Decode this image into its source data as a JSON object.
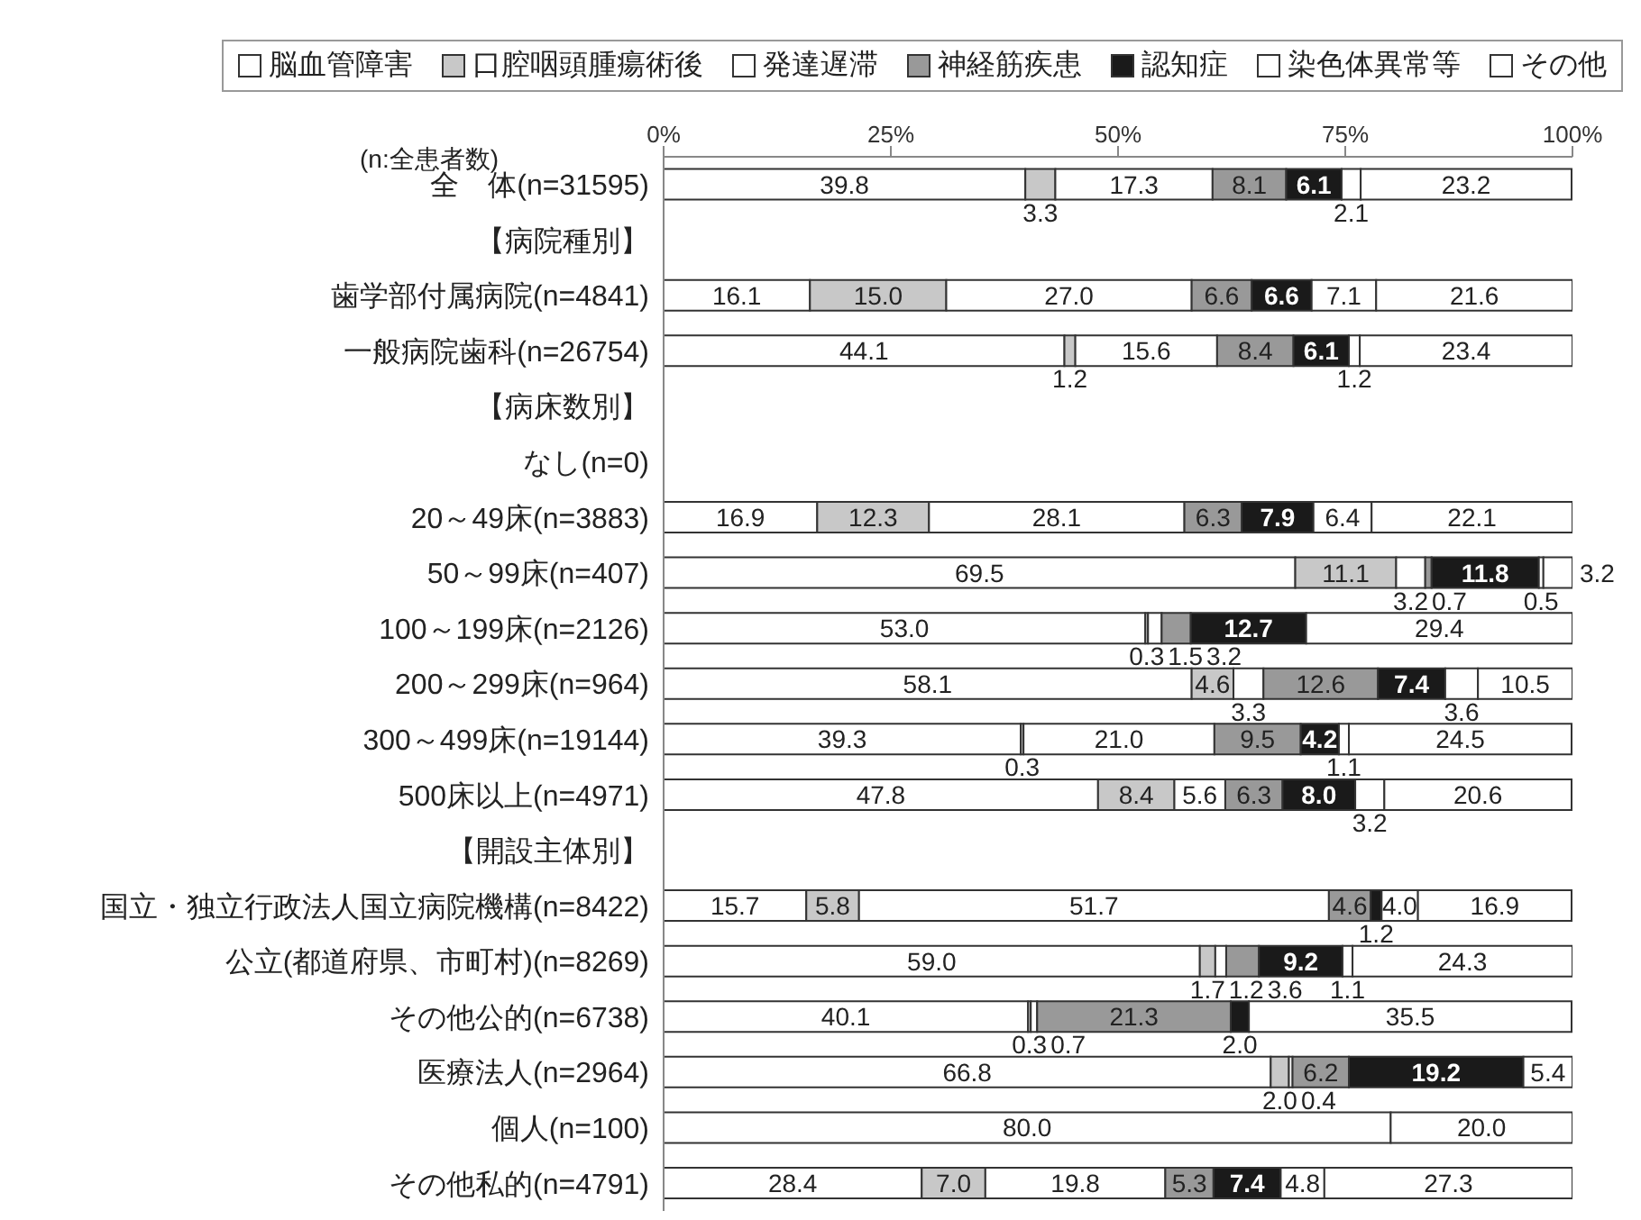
{
  "chart_data": {
    "type": "bar",
    "orientation": "horizontal",
    "stacked": true,
    "legend": "top",
    "annotations": [
      "(n:全患者数)"
    ],
    "categories": [
      "全　体(n=31595)",
      "【病院種別】",
      "歯学部付属病院(n=4841)",
      "一般病院歯科(n=26754)",
      "【病床数別】",
      "なし(n=0)",
      "20～49床(n=3883)",
      "50～99床(n=407)",
      "100～199床(n=2126)",
      "200～299床(n=964)",
      "300～499床(n=19144)",
      "500床以上(n=4971)",
      "【開設主体別】",
      "国立・独立行政法人国立病院機構(n=8422)",
      "公立(都道府県、市町村)(n=8269)",
      "その他公的(n=6738)",
      "医療法人(n=2964)",
      "個人(n=100)",
      "その他私的(n=4791)"
    ],
    "xlim": [
      0,
      100
    ],
    "xticks": [
      {
        "value": 0,
        "label": "0%"
      },
      {
        "value": 25,
        "label": "25%"
      },
      {
        "value": 50,
        "label": "50%"
      },
      {
        "value": 75,
        "label": "75%"
      },
      {
        "value": 100,
        "label": "100%"
      }
    ],
    "series": [
      {
        "name": "脳血管障害",
        "color": "#ffffff",
        "values": [
          39.8,
          null,
          16.1,
          44.1,
          null,
          null,
          16.9,
          69.5,
          53.0,
          58.1,
          39.3,
          47.8,
          null,
          15.7,
          59.0,
          40.1,
          66.8,
          80.0,
          28.4
        ],
        "value_labels": [
          "39.8",
          null,
          "16.1",
          "44.1",
          null,
          null,
          "16.9",
          "69.5",
          "53.0",
          "58.1",
          "39.3",
          "47.8",
          null,
          "15.7",
          "59.0",
          "40.1",
          "66.8",
          "80.0",
          "28.4"
        ]
      },
      {
        "name": "口腔咽頭腫瘍術後",
        "color": "#c8c8c8",
        "values": [
          3.3,
          null,
          15.0,
          1.2,
          null,
          null,
          12.3,
          11.1,
          0.3,
          4.6,
          0.3,
          8.4,
          null,
          5.8,
          1.7,
          0.3,
          2.0,
          null,
          7.0
        ],
        "value_labels": [
          "3.3",
          null,
          "15.0",
          "1.2",
          null,
          null,
          "12.3",
          "11.1",
          "0.3",
          "4.6",
          "0.3",
          "8.4",
          null,
          "5.8",
          "1.7",
          "0.3",
          "2.0",
          null,
          "7.0"
        ]
      },
      {
        "name": "発達遅滞",
        "color": "#ffffff",
        "values": [
          17.3,
          null,
          27.0,
          15.6,
          null,
          null,
          28.1,
          3.2,
          1.5,
          3.3,
          21.0,
          5.6,
          null,
          51.7,
          1.2,
          0.7,
          0.4,
          null,
          19.8
        ],
        "value_labels": [
          "17.3",
          null,
          "27.0",
          "15.6",
          null,
          null,
          "28.1",
          "3.2",
          "1.5",
          "3.3",
          "21.0",
          "5.6",
          null,
          "51.7",
          "1.2",
          "0.7",
          "0.4",
          null,
          "19.8"
        ]
      },
      {
        "name": "神経筋疾患",
        "color": "#999999",
        "values": [
          8.1,
          null,
          6.6,
          8.4,
          null,
          null,
          6.3,
          0.7,
          3.2,
          12.6,
          9.5,
          6.3,
          null,
          4.6,
          3.6,
          21.3,
          6.2,
          null,
          5.3
        ],
        "value_labels": [
          "8.1",
          null,
          "6.6",
          "8.4",
          null,
          null,
          "6.3",
          "0.7",
          "3.2",
          "12.6",
          "9.5",
          "6.3",
          null,
          "4.6",
          "3.6",
          "21.3",
          "6.2",
          null,
          "5.3"
        ]
      },
      {
        "name": "認知症",
        "color": "#1a1a1a",
        "values": [
          6.1,
          null,
          6.6,
          6.1,
          null,
          null,
          7.9,
          11.8,
          12.7,
          7.4,
          4.2,
          8.0,
          null,
          1.2,
          9.2,
          2.0,
          19.2,
          null,
          7.4
        ],
        "value_labels": [
          "6.1",
          null,
          "6.6",
          "6.1",
          null,
          null,
          "7.9",
          "11.8",
          "12.7",
          "7.4",
          "4.2",
          "8.0",
          null,
          "1.2",
          "9.2",
          "2.0",
          "19.2",
          null,
          "7.4"
        ]
      },
      {
        "name": "染色体異常等",
        "color": "#ffffff",
        "values": [
          2.1,
          null,
          7.1,
          1.2,
          null,
          null,
          6.4,
          0.5,
          null,
          3.6,
          1.1,
          3.2,
          null,
          4.0,
          1.1,
          null,
          null,
          null,
          4.8
        ],
        "value_labels": [
          "2.1",
          null,
          "7.1",
          "1.2",
          null,
          null,
          "6.4",
          "0.5",
          null,
          "3.6",
          "1.1",
          "3.2",
          null,
          "4.0",
          "1.1",
          null,
          null,
          null,
          "4.8"
        ]
      },
      {
        "name": "その他",
        "color": "#ffffff",
        "values": [
          23.2,
          null,
          21.6,
          23.4,
          null,
          null,
          22.1,
          3.2,
          29.4,
          10.5,
          24.5,
          20.6,
          null,
          16.9,
          24.3,
          35.5,
          5.4,
          20.0,
          27.3
        ],
        "value_labels": [
          "23.2",
          null,
          "21.6",
          "23.4",
          null,
          null,
          "22.1",
          "3.2",
          "29.4",
          "10.5",
          "24.5",
          "20.6",
          null,
          "16.9",
          "24.3",
          "35.5",
          "5.4",
          "20.0",
          "27.3"
        ]
      }
    ]
  }
}
